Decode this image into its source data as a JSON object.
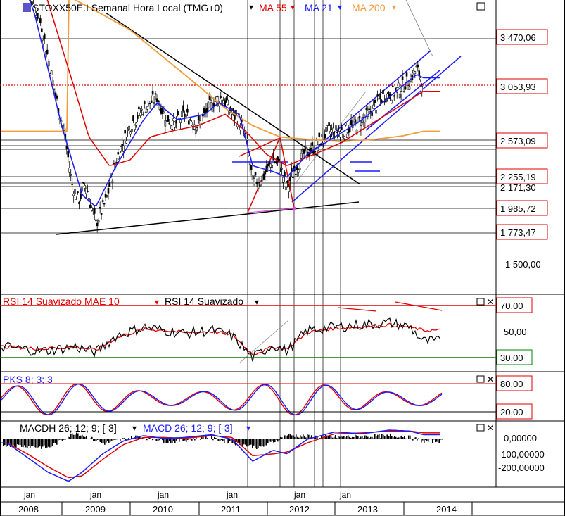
{
  "header": {
    "symbol": "STOXX50E.I Semanal Hora Local (TMG+0)",
    "ma55": "MA 55",
    "ma21": "MA 21",
    "ma200": "MA 200",
    "rsi_a": "RSI 14 Suavizado MAE 10",
    "rsi_b": "RSI 14 Suavizado",
    "pks": "PKS 8; 3; 3",
    "macdh": "MACDH 26; 12; 9; [-3]",
    "macd": "MACD 26; 12; 9; [-3]"
  },
  "colors": {
    "price": "#000000",
    "ma55": "#e00000",
    "ma21": "#1a1aff",
    "ma200": "#f39a3a",
    "trend_black": "#000000",
    "trend_blue": "#1a1aff",
    "trend_red": "#e00000",
    "pink": "#e040e0",
    "green": "#008000"
  },
  "price_axis": {
    "ticks": [
      "3 470,06",
      "3 053,93",
      "2 573,09",
      "2 255,19",
      "2 171,30",
      "1 985,72",
      "1 773,47",
      "1 500,00"
    ],
    "highlight_tick": "3 053,93"
  },
  "rsi_axis": {
    "ticks": [
      "70,00",
      "50,00",
      "30,00"
    ]
  },
  "pks_axis": {
    "ticks": [
      "80,00",
      "20,00"
    ]
  },
  "macd_axis": {
    "ticks": [
      "0,00000",
      "-100,00000",
      "-200,00000"
    ]
  },
  "time_axis": {
    "month_labels": [
      "jan",
      "jan",
      "jan",
      "jan",
      "jan",
      "jan"
    ],
    "year_labels": [
      "2008",
      "2009",
      "2010",
      "2011",
      "2012",
      "2013",
      "2014"
    ]
  },
  "chart_data": [
    {
      "type": "line",
      "title": "STOXX50E.I Semanal Hora Local (TMG+0)",
      "x": [
        "2008",
        "2009",
        "2010",
        "2011",
        "2012",
        "2013",
        "2014"
      ],
      "series": [
        {
          "name": "STOXX50E.I",
          "values": [
            4400,
            2200,
            2950,
            2900,
            2300,
            2650,
            3150
          ]
        },
        {
          "name": "MA 55",
          "values": [
            4300,
            2600,
            2400,
            2800,
            2350,
            2550,
            2950
          ]
        },
        {
          "name": "MA 21",
          "values": [
            4300,
            2300,
            2750,
            2850,
            2300,
            2600,
            3050
          ]
        },
        {
          "name": "MA 200",
          "values": [
            3700,
            3650,
            3250,
            2950,
            2600,
            2560,
            2720
          ]
        }
      ],
      "horizontal_levels": [
        3470.06,
        3053.93,
        2573.09,
        2255.19,
        2171.3,
        1985.72,
        1773.47
      ],
      "ylim": [
        1400,
        4500
      ]
    },
    {
      "type": "line",
      "title": "RSI 14 Suavizado MAE 10",
      "x": [
        "2008",
        "2009",
        "2010",
        "2011",
        "2012",
        "2013",
        "2014"
      ],
      "series": [
        {
          "name": "RSI 14 Suavizado",
          "values": [
            40,
            45,
            58,
            55,
            32,
            62,
            45
          ]
        },
        {
          "name": "RSI 14 Suavizado MAE 10",
          "values": [
            38,
            44,
            55,
            54,
            36,
            60,
            56
          ]
        }
      ],
      "levels": [
        70,
        30
      ],
      "ylim": [
        20,
        75
      ]
    },
    {
      "type": "line",
      "title": "PKS 8; 3; 3",
      "levels": [
        80,
        20
      ],
      "ylim": [
        0,
        100
      ]
    },
    {
      "type": "line",
      "title": "MACD 26; 12; 9; [-3]",
      "x": [
        "2008",
        "2009",
        "2010",
        "2011",
        "2012",
        "2013",
        "2014"
      ],
      "series": [
        {
          "name": "MACDH 26; 12; 9; [-3]",
          "values": [
            -20,
            10,
            -5,
            0,
            -30,
            20,
            5
          ]
        },
        {
          "name": "MACD 26; 12; 9; [-3]",
          "values": [
            -150,
            -20,
            30,
            20,
            -120,
            60,
            30
          ]
        }
      ],
      "ylim": [
        -280,
        80
      ]
    }
  ]
}
